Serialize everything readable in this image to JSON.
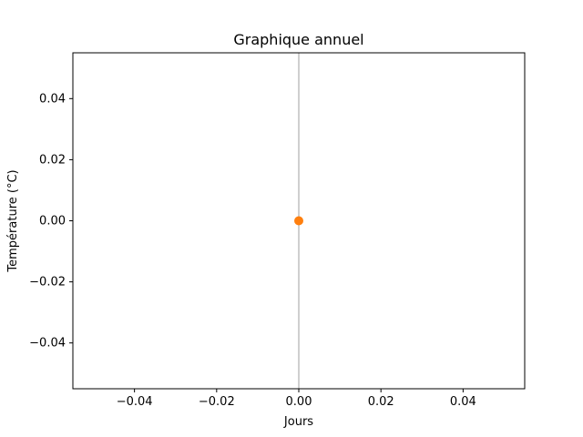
{
  "chart_data": {
    "type": "scatter",
    "title": "Graphique annuel",
    "xlabel": "Jours",
    "ylabel": "Température (°C)",
    "xlim": [
      -0.055,
      0.055
    ],
    "ylim": [
      -0.055,
      0.055
    ],
    "xticks": [
      -0.04,
      -0.02,
      0.0,
      0.02,
      0.04
    ],
    "yticks": [
      -0.04,
      -0.02,
      0.0,
      0.02,
      0.04
    ],
    "xtick_labels": [
      "−0.04",
      "−0.02",
      "0.00",
      "0.02",
      "0.04"
    ],
    "ytick_labels": [
      "−0.04",
      "−0.02",
      "0.00",
      "0.02",
      "0.04"
    ],
    "grid": false,
    "reference_line": {
      "orientation": "vertical",
      "x": 0.0,
      "color": "#bfbfbf"
    },
    "series": [
      {
        "color": "#ff7f0e",
        "points": [
          {
            "x": 0.0,
            "y": 0.0
          }
        ]
      }
    ]
  }
}
